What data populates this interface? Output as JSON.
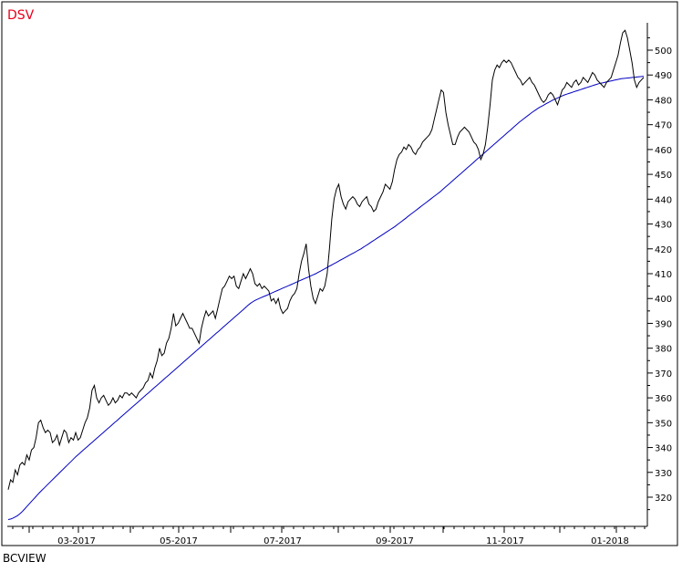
{
  "title": "DSV",
  "brand": "BCVIEW",
  "colors": {
    "title": "#e8001c",
    "price": "#000000",
    "moving_average": "#0000c0",
    "frame": "#000000"
  },
  "chart_data": {
    "type": "line",
    "title": "DSV",
    "ylim": [
      310,
      510
    ],
    "grid": false,
    "y_ticks": [
      320,
      330,
      340,
      350,
      360,
      370,
      380,
      390,
      400,
      410,
      420,
      430,
      440,
      450,
      460,
      470,
      480,
      490,
      500
    ],
    "x_ticks": [
      "03-2017",
      "05-2017",
      "07-2017",
      "09-2017",
      "11-2017",
      "01-2018"
    ],
    "series": [
      {
        "key": "price",
        "values": [
          323,
          327,
          326,
          331,
          329,
          333,
          334,
          333,
          337,
          335,
          339,
          340,
          344,
          350,
          351,
          348,
          346,
          347,
          346,
          342,
          343,
          345,
          341,
          344,
          347,
          346,
          342,
          344,
          343,
          346,
          343,
          344,
          347,
          350,
          352,
          356,
          363,
          365,
          360,
          358,
          360,
          361,
          359,
          357,
          358,
          360,
          358,
          359,
          361,
          360,
          362,
          362,
          361,
          362,
          361,
          360,
          362,
          363,
          364,
          366,
          367,
          370,
          368,
          372,
          375,
          380,
          377,
          378,
          382,
          384,
          388,
          394,
          389,
          390,
          392,
          394,
          392,
          390,
          388,
          388,
          386,
          384,
          382,
          388,
          392,
          395,
          393,
          394,
          395,
          392,
          396,
          400,
          404,
          405,
          407,
          409,
          408,
          409,
          405,
          404,
          407,
          410,
          408,
          410,
          412,
          410,
          406,
          405,
          406,
          404,
          405,
          404,
          403,
          399,
          400,
          398,
          400,
          396,
          394,
          395,
          396,
          399,
          401,
          402,
          404,
          410,
          415,
          418,
          422,
          412,
          405,
          400,
          398,
          401,
          404,
          403,
          405,
          410,
          420,
          432,
          440,
          444,
          446,
          441,
          438,
          436,
          439,
          440,
          441,
          440,
          438,
          437,
          439,
          440,
          441,
          438,
          437,
          435,
          436,
          439,
          441,
          443,
          446,
          445,
          444,
          447,
          452,
          456,
          458,
          459,
          461,
          460,
          462,
          461,
          459,
          458,
          460,
          461,
          463,
          464,
          465,
          466,
          468,
          472,
          476,
          480,
          484,
          483,
          475,
          470,
          466,
          462,
          462,
          465,
          467,
          468,
          469,
          468,
          467,
          465,
          463,
          462,
          460,
          456,
          458,
          462,
          469,
          478,
          488,
          492,
          494,
          493,
          495,
          496,
          495,
          496,
          495,
          493,
          491,
          489,
          488,
          486,
          487,
          488,
          489,
          487,
          486,
          484,
          482,
          480,
          479,
          480,
          482,
          483,
          482,
          480,
          478,
          481,
          484,
          485,
          487,
          486,
          485,
          487,
          488,
          486,
          487,
          489,
          488,
          487,
          489,
          491,
          490,
          488,
          487,
          486,
          485,
          487,
          488,
          489,
          492,
          495,
          498,
          503,
          507,
          508,
          505,
          500,
          495,
          488,
          485,
          487,
          488,
          489
        ]
      },
      {
        "key": "ma",
        "values": [
          311,
          311.2,
          311.5,
          312,
          312.5,
          313.2,
          314,
          315,
          316,
          317,
          318,
          319,
          320,
          321,
          322,
          322.9,
          323.8,
          324.7,
          325.6,
          326.5,
          327.4,
          328.3,
          329.2,
          330.1,
          331,
          331.9,
          332.8,
          333.7,
          334.6,
          335.5,
          336.4,
          337.2,
          338,
          338.8,
          339.6,
          340.4,
          341.2,
          342,
          342.8,
          343.6,
          344.4,
          345.2,
          346,
          346.8,
          347.6,
          348.4,
          349.2,
          350,
          350.8,
          351.6,
          352.4,
          353.2,
          354,
          354.8,
          355.6,
          356.4,
          357.2,
          358,
          358.8,
          359.6,
          360.4,
          361.2,
          362,
          362.8,
          363.6,
          364.4,
          365.2,
          366,
          366.8,
          367.6,
          368.4,
          369.2,
          370,
          370.8,
          371.6,
          372.4,
          373.2,
          374,
          374.8,
          375.6,
          376.4,
          377.2,
          378,
          378.8,
          379.6,
          380.4,
          381.2,
          382,
          382.8,
          383.6,
          384.4,
          385.2,
          386,
          386.8,
          387.6,
          388.4,
          389.2,
          390,
          390.8,
          391.6,
          392.4,
          393.2,
          394,
          394.8,
          395.6,
          396.4,
          397.2,
          398,
          398.6,
          399.2,
          399.6,
          400,
          400.4,
          400.8,
          401.2,
          401.6,
          402,
          402.4,
          402.8,
          403.2,
          403.6,
          404,
          404.4,
          404.8,
          405.2,
          405.6,
          406,
          406.4,
          406.8,
          407.2,
          407.6,
          408,
          408.4,
          408.8,
          409.2,
          409.6,
          410,
          410.5,
          411,
          411.5,
          412,
          412.5,
          413,
          413.5,
          414,
          414.5,
          415,
          415.5,
          416,
          416.5,
          417,
          417.5,
          418,
          418.5,
          419,
          419.5,
          420,
          420.6,
          421.2,
          421.8,
          422.4,
          423,
          423.6,
          424.2,
          424.8,
          425.4,
          426,
          426.6,
          427.2,
          427.8,
          428.4,
          429,
          429.7,
          430.4,
          431.1,
          431.8,
          432.5,
          433.2,
          433.9,
          434.6,
          435.3,
          436,
          436.7,
          437.4,
          438.1,
          438.8,
          439.5,
          440.2,
          440.9,
          441.6,
          442.3,
          443,
          443.8,
          444.6,
          445.4,
          446.2,
          447,
          447.8,
          448.6,
          449.4,
          450.2,
          451,
          451.8,
          452.6,
          453.4,
          454.2,
          455,
          455.8,
          456.6,
          457.4,
          458.2,
          459,
          459.8,
          460.6,
          461.4,
          462.2,
          463,
          463.8,
          464.6,
          465.4,
          466.2,
          467,
          467.8,
          468.6,
          469.4,
          470.2,
          471,
          471.7,
          472.4,
          473.1,
          473.8,
          474.5,
          475.2,
          475.8,
          476.4,
          477,
          477.5,
          478,
          478.5,
          479,
          479.5,
          480,
          480.4,
          480.8,
          481.2,
          481.6,
          482,
          482.3,
          482.6,
          482.9,
          483.2,
          483.5,
          483.8,
          484.1,
          484.4,
          484.7,
          485,
          485.3,
          485.6,
          485.9,
          486.2,
          486.5,
          486.7,
          486.9,
          487.1,
          487.3,
          487.5,
          487.7,
          487.9,
          488.1,
          488.3,
          488.5,
          488.6,
          488.7,
          488.8,
          488.9,
          489,
          489.1,
          489.2,
          489.3,
          489.4,
          489.5
        ]
      }
    ]
  }
}
